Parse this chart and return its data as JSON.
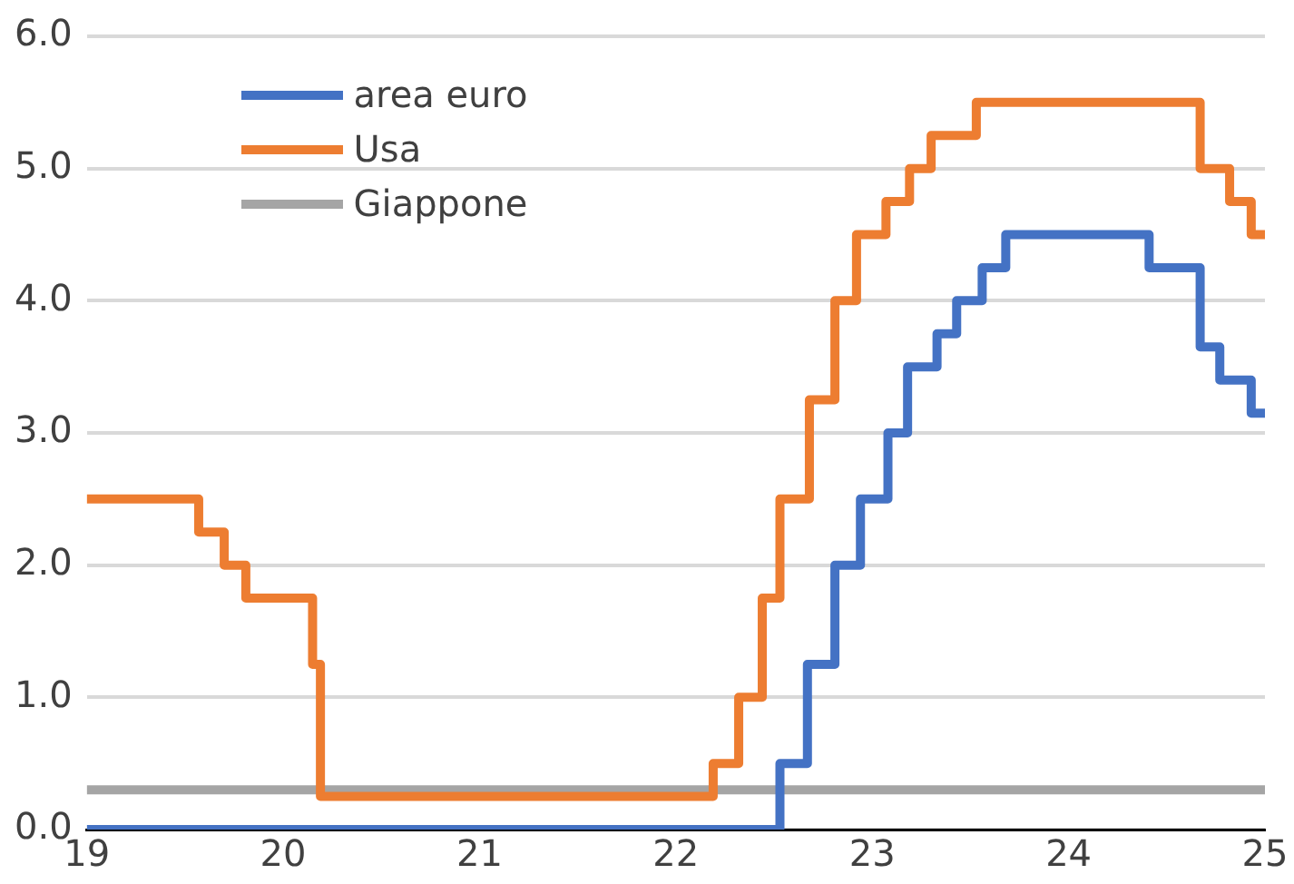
{
  "chart_data": {
    "type": "step",
    "xlim": [
      19,
      25
    ],
    "xticks": [
      19,
      20,
      21,
      22,
      23,
      24,
      25
    ],
    "ylim": [
      0,
      6
    ],
    "yticks": [
      {
        "value": 0,
        "label": "0.0"
      },
      {
        "value": 1,
        "label": "1.0"
      },
      {
        "value": 2,
        "label": "2.0"
      },
      {
        "value": 3,
        "label": "3.0"
      },
      {
        "value": 4,
        "label": "4.0"
      },
      {
        "value": 5,
        "label": "5.0"
      },
      {
        "value": 6,
        "label": "6.0"
      }
    ],
    "grid": "y",
    "legend": "top left",
    "line_style": "solid",
    "marker": "none",
    "series": [
      {
        "name": "area euro",
        "color": "#4472c4",
        "x": [
          19,
          22.53,
          22.67,
          22.81,
          22.94,
          23.08,
          23.18,
          23.33,
          23.43,
          23.56,
          23.68,
          24.41,
          24.67,
          24.77,
          24.93,
          25
        ],
        "values": [
          0,
          0.5,
          1.25,
          2.0,
          2.5,
          3.0,
          3.5,
          3.75,
          4.0,
          4.25,
          4.5,
          4.25,
          3.65,
          3.4,
          3.15,
          3.15
        ]
      },
      {
        "name": "Usa",
        "color": "#ed7d31",
        "x": [
          19,
          19.57,
          19.7,
          19.81,
          20.15,
          20.19,
          22.19,
          22.32,
          22.44,
          22.53,
          22.68,
          22.81,
          22.92,
          23.07,
          23.19,
          23.3,
          23.53,
          24.67,
          24.82,
          24.93,
          25
        ],
        "values": [
          2.5,
          2.25,
          2.0,
          1.75,
          1.25,
          0.25,
          0.5,
          1.0,
          1.75,
          2.5,
          3.25,
          4.0,
          4.5,
          4.75,
          5.0,
          5.25,
          5.5,
          5.0,
          4.75,
          4.5,
          4.5
        ]
      },
      {
        "name": "Giappone",
        "color": "#a5a5a5",
        "x": [
          19,
          25
        ],
        "values": [
          0.3,
          0.3
        ]
      }
    ]
  }
}
